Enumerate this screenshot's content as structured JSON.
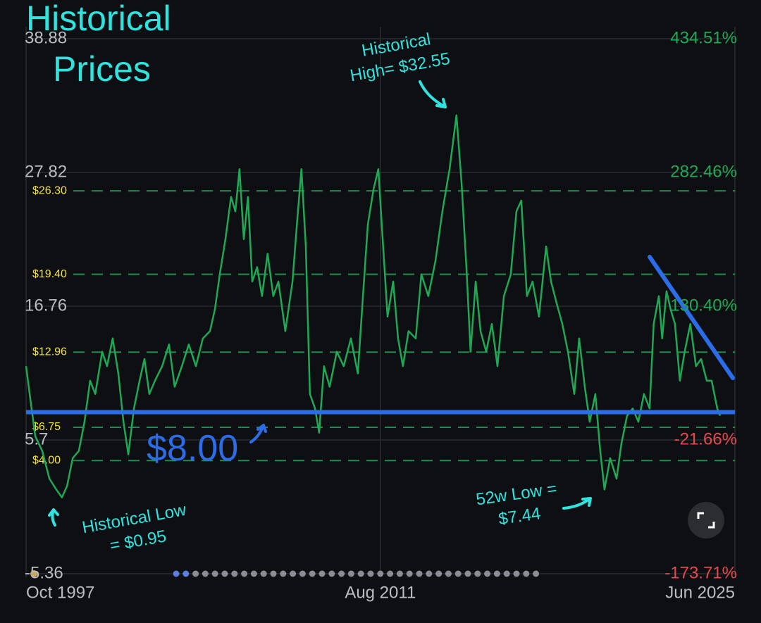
{
  "chart_data": {
    "type": "line",
    "title": [
      "Historical",
      "Prices"
    ],
    "x": [
      1997.75,
      1997.89,
      1998.11,
      1998.38,
      1998.66,
      1998.93,
      1999.15,
      1999.35,
      1999.57,
      1999.81,
      2000.03,
      2000.25,
      2000.45,
      2000.72,
      2000.91,
      2001.13,
      2001.35,
      2001.55,
      2001.74,
      2001.96,
      2002.18,
      2002.37,
      2002.56,
      2002.78,
      2003.06,
      2003.33,
      2003.55,
      2003.83,
      2004.1,
      2004.38,
      2004.65,
      2004.93,
      2005.12,
      2005.31,
      2005.53,
      2005.75,
      2005.92,
      2006.08,
      2006.25,
      2006.41,
      2006.58,
      2006.77,
      2006.96,
      2007.18,
      2007.4,
      2007.6,
      2007.87,
      2008.15,
      2008.34,
      2008.5,
      2008.67,
      2008.83,
      2009.03,
      2009.19,
      2009.38,
      2009.6,
      2009.88,
      2010.15,
      2010.43,
      2010.7,
      2010.9,
      2011.09,
      2011.31,
      2011.5,
      2011.67,
      2011.86,
      2012.08,
      2012.27,
      2012.46,
      2012.68,
      2012.96,
      2013.18,
      2013.45,
      2013.73,
      2014.0,
      2014.28,
      2014.55,
      2014.75,
      2014.94,
      2015.1,
      2015.3,
      2015.49,
      2015.71,
      2015.93,
      2016.15,
      2016.4,
      2016.67,
      2016.89,
      2017.08,
      2017.3,
      2017.52,
      2017.77,
      2018.05,
      2018.24,
      2018.46,
      2018.68,
      2018.9,
      2019.15,
      2019.34,
      2019.56,
      2019.75,
      2019.97,
      2020.16,
      2020.33,
      2020.55,
      2020.8,
      2020.99,
      2021.21,
      2021.43,
      2021.65,
      2021.87,
      2022.09,
      2022.25,
      2022.45,
      2022.58,
      2022.75,
      2022.91,
      2023.08,
      2023.27,
      2023.46,
      2023.68,
      2023.9,
      2024.1,
      2024.32,
      2024.51,
      2024.73,
      2024.84
    ],
    "values": [
      11.8,
      9.5,
      6.0,
      4.8,
      2.5,
      1.6,
      0.95,
      1.9,
      4.2,
      4.8,
      7.2,
      10.6,
      9.5,
      13.0,
      11.8,
      14.1,
      11.2,
      7.2,
      4.5,
      8.3,
      10.6,
      12.4,
      9.5,
      10.6,
      11.8,
      13.6,
      10.1,
      11.8,
      13.6,
      11.8,
      14.1,
      14.7,
      16.5,
      19.4,
      22.3,
      25.8,
      24.6,
      28.1,
      22.3,
      25.8,
      18.8,
      20.0,
      17.6,
      21.1,
      17.6,
      18.8,
      14.7,
      18.8,
      24.0,
      28.1,
      21.7,
      9.5,
      8.3,
      6.3,
      11.8,
      10.1,
      13.0,
      11.8,
      14.1,
      11.2,
      17.6,
      23.5,
      26.4,
      28.1,
      22.3,
      15.9,
      18.8,
      14.1,
      11.8,
      14.7,
      14.1,
      19.4,
      17.6,
      20.5,
      24.6,
      28.1,
      32.55,
      26.9,
      19.9,
      13.0,
      18.8,
      14.7,
      13.0,
      15.3,
      11.8,
      17.6,
      19.4,
      24.6,
      25.5,
      17.6,
      18.8,
      15.9,
      21.7,
      18.8,
      17.0,
      15.3,
      13.0,
      9.5,
      14.1,
      10.1,
      7.2,
      9.5,
      4.8,
      1.6,
      4.2,
      2.5,
      5.4,
      7.7,
      8.3,
      7.2,
      9.5,
      8.3,
      15.3,
      17.6,
      14.1,
      18.0,
      16.5,
      15.3,
      10.6,
      13.0,
      15.3,
      11.8,
      12.4,
      10.6,
      10.6,
      8.3,
      7.7
    ],
    "color": "#1fa855",
    "xlim": [
      1997.75,
      2025.42
    ],
    "xticks": [
      {
        "value": 1997.75,
        "label": "Oct 1997"
      },
      {
        "value": 2011.58,
        "label": "Aug 2011"
      },
      {
        "value": 2025.42,
        "label": "Jun 2025"
      }
    ],
    "ylim": [
      -5.36,
      38.88
    ],
    "yticks": [
      38.88,
      27.82,
      16.76,
      5.7,
      -5.36
    ],
    "y2lim": [
      -173.71,
      434.51
    ],
    "y2ticks": [
      {
        "value": 434.51,
        "label": "434.51%"
      },
      {
        "value": 282.46,
        "label": "282.46%"
      },
      {
        "value": 130.4,
        "label": "130.40%"
      },
      {
        "value": -21.66,
        "label": "-21.66%"
      },
      {
        "value": -173.71,
        "label": "-173.71%"
      }
    ],
    "grid": true,
    "levels": [
      {
        "value": 26.3,
        "label": "$26.30"
      },
      {
        "value": 19.4,
        "label": "$19.40"
      },
      {
        "value": 12.96,
        "label": "$12.96"
      },
      {
        "value": 6.75,
        "label": "$6.75"
      },
      {
        "value": 4.0,
        "label": "$4.00"
      }
    ],
    "reference_line": {
      "value": 8.0,
      "label": "$8.00",
      "color": "#2b6de8"
    },
    "annotations": [
      {
        "lines": [
          "Historical",
          "High= $32.55"
        ]
      },
      {
        "lines": [
          "Historical Low",
          "= $0.95"
        ]
      },
      {
        "lines": [
          "52w Low =",
          "$7.44"
        ]
      }
    ]
  }
}
